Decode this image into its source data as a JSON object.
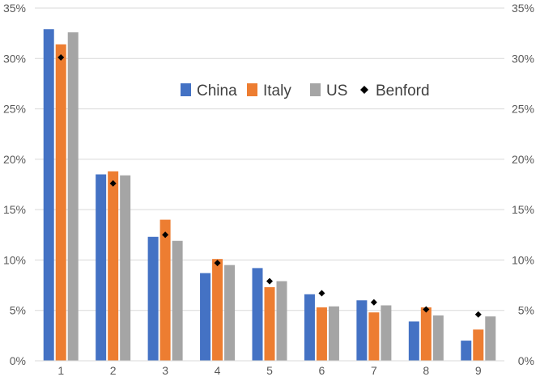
{
  "chart_data": {
    "type": "bar",
    "categories": [
      "1",
      "2",
      "3",
      "4",
      "5",
      "6",
      "7",
      "8",
      "9"
    ],
    "series": [
      {
        "name": "China",
        "kind": "bar",
        "color": "#4472C4",
        "values": [
          32.9,
          18.5,
          12.3,
          8.7,
          9.2,
          6.6,
          6.0,
          3.9,
          2.0
        ]
      },
      {
        "name": "Italy",
        "kind": "bar",
        "color": "#ED7D31",
        "values": [
          31.4,
          18.8,
          14.0,
          10.1,
          7.3,
          5.3,
          4.8,
          5.3,
          3.1
        ]
      },
      {
        "name": "US",
        "kind": "bar",
        "color": "#A5A5A5",
        "values": [
          32.6,
          18.4,
          11.9,
          9.5,
          7.9,
          5.4,
          5.5,
          4.5,
          4.4
        ]
      },
      {
        "name": "Benford",
        "kind": "marker",
        "color": "#000000",
        "values": [
          30.1,
          17.6,
          12.5,
          9.7,
          7.9,
          6.7,
          5.8,
          5.1,
          4.6
        ]
      }
    ],
    "yticks": [
      "0%",
      "5%",
      "10%",
      "15%",
      "20%",
      "25%",
      "30%",
      "35%"
    ],
    "ylim": [
      0,
      35
    ],
    "secondary_axis": true,
    "grid": true,
    "legend_position": "top-right"
  }
}
